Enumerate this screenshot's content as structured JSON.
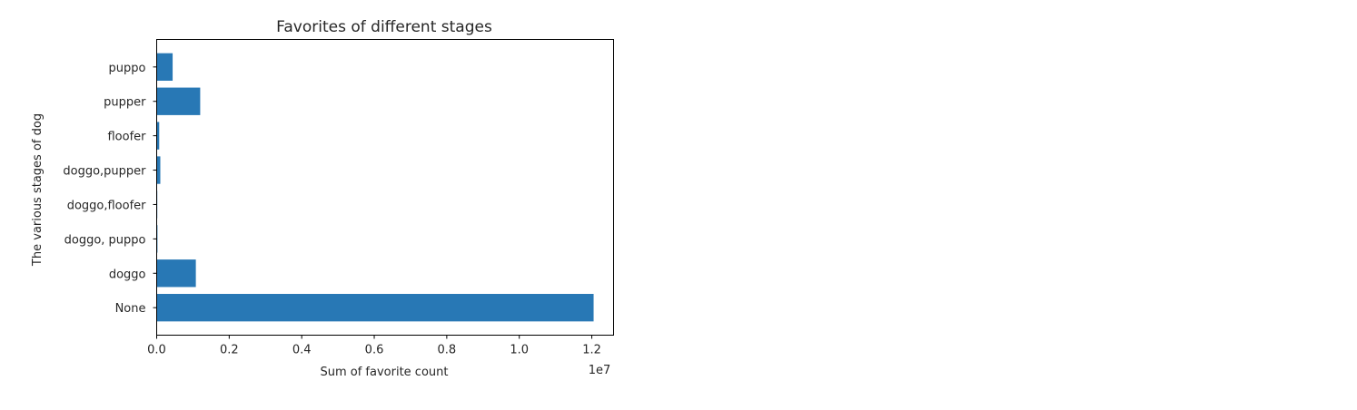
{
  "chart_data": {
    "type": "bar",
    "orientation": "horizontal",
    "title": "Favorites of different stages",
    "xlabel": "Sum of favorite count",
    "ylabel": "The various stages of dog",
    "x_offset_label": "1e7",
    "x_scale": 10000000,
    "xlim": [
      0,
      12600000
    ],
    "x_ticks": [
      0,
      2000000,
      4000000,
      6000000,
      8000000,
      10000000,
      12000000
    ],
    "x_tick_labels": [
      "0.0",
      "0.2",
      "0.4",
      "0.6",
      "0.8",
      "1.0",
      "1.2"
    ],
    "categories": [
      "None",
      "doggo",
      "doggo, puppo",
      "doggo,floofer",
      "doggo,pupper",
      "floofer",
      "pupper",
      "puppo"
    ],
    "values": [
      12050000,
      1080000,
      22000,
      17000,
      100000,
      70000,
      1200000,
      440000
    ],
    "color": "#2878b5",
    "grid": false,
    "legend": false
  }
}
